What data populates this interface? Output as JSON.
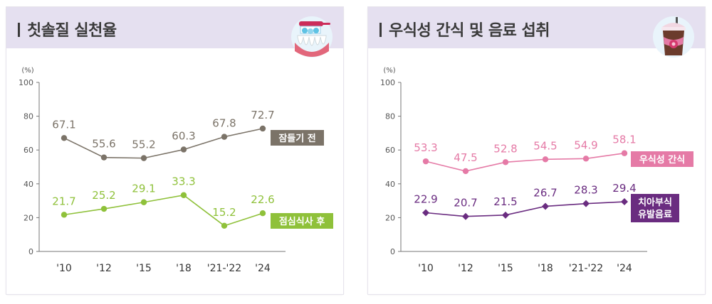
{
  "left_panel": {
    "title": "칫솔질 실천율",
    "icon": "tooth-brushing-icon"
  },
  "right_panel": {
    "title": "우식성 간식 및 음료 섭취",
    "icon": "soft-drink-icon"
  },
  "chart_data": [
    {
      "type": "line",
      "title": "칫솔질 실천율",
      "ylabel": "(%)",
      "ylim": [
        0,
        100
      ],
      "yticks": [
        0,
        20,
        40,
        60,
        80,
        100
      ],
      "categories": [
        "'10",
        "'12",
        "'15",
        "'18",
        "'21-'22",
        "'24"
      ],
      "series": [
        {
          "name": "잠들기 전",
          "color": "#7b7368",
          "values": [
            67.1,
            55.6,
            55.2,
            60.3,
            67.8,
            72.7
          ]
        },
        {
          "name": "점심식사 후",
          "color": "#8fc13a",
          "values": [
            21.7,
            25.2,
            29.1,
            33.3,
            15.2,
            22.6
          ]
        }
      ]
    },
    {
      "type": "line",
      "title": "우식성 간식 및 음료 섭취",
      "ylabel": "(%)",
      "ylim": [
        0,
        100
      ],
      "yticks": [
        0,
        20,
        40,
        60,
        80,
        100
      ],
      "categories": [
        "'10",
        "'12",
        "'15",
        "'18",
        "'21-'22",
        "'24"
      ],
      "series": [
        {
          "name": "우식성 간식",
          "color": "#e57aa6",
          "values": [
            53.3,
            47.5,
            52.8,
            54.5,
            54.9,
            58.1
          ]
        },
        {
          "name": "치아부식 유발음료",
          "color": "#6a2c80",
          "values": [
            22.9,
            20.7,
            21.5,
            26.7,
            28.3,
            29.4
          ]
        }
      ]
    }
  ]
}
